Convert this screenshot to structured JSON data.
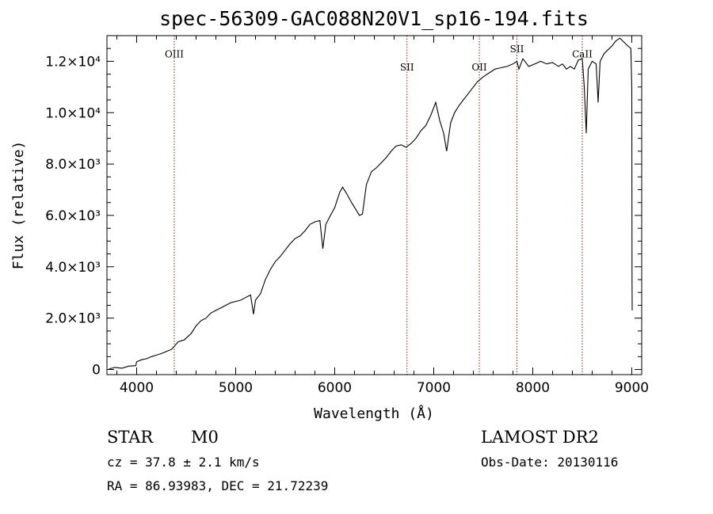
{
  "chart_data": {
    "type": "line",
    "title": "spec-56309-GAC088N20V1_sp16-194.fits",
    "xlabel": "Wavelength (Å)",
    "ylabel": "Flux (relative)",
    "xlim": [
      3700,
      9100
    ],
    "ylim": [
      -200,
      13000
    ],
    "x_ticks": [
      4000,
      5000,
      6000,
      7000,
      8000,
      9000
    ],
    "y_ticks": [
      {
        "value": 0,
        "label": "0"
      },
      {
        "value": 2000,
        "label": "2.0×10³"
      },
      {
        "value": 4000,
        "label": "4.0×10³"
      },
      {
        "value": 6000,
        "label": "6.0×10³"
      },
      {
        "value": 8000,
        "label": "8.0×10³"
      },
      {
        "value": 10000,
        "label": "1.0×10⁴"
      },
      {
        "value": 12000,
        "label": "1.2×10⁴"
      }
    ],
    "grid": false,
    "legend": "none",
    "series": [
      {
        "points": [
          [
            3720,
            20
          ],
          [
            3780,
            80
          ],
          [
            3850,
            50
          ],
          [
            3920,
            130
          ],
          [
            3990,
            150
          ],
          [
            4000,
            300
          ],
          [
            4050,
            380
          ],
          [
            4100,
            420
          ],
          [
            4150,
            500
          ],
          [
            4200,
            560
          ],
          [
            4250,
            620
          ],
          [
            4300,
            700
          ],
          [
            4350,
            780
          ],
          [
            4380,
            900
          ],
          [
            4420,
            1080
          ],
          [
            4480,
            1150
          ],
          [
            4550,
            1400
          ],
          [
            4600,
            1700
          ],
          [
            4650,
            1900
          ],
          [
            4700,
            2000
          ],
          [
            4750,
            2200
          ],
          [
            4800,
            2300
          ],
          [
            4850,
            2400
          ],
          [
            4900,
            2500
          ],
          [
            4950,
            2600
          ],
          [
            5000,
            2650
          ],
          [
            5050,
            2700
          ],
          [
            5100,
            2800
          ],
          [
            5150,
            2900
          ],
          [
            5180,
            2150
          ],
          [
            5200,
            2700
          ],
          [
            5250,
            2950
          ],
          [
            5300,
            3500
          ],
          [
            5350,
            3900
          ],
          [
            5400,
            4200
          ],
          [
            5450,
            4400
          ],
          [
            5500,
            4650
          ],
          [
            5550,
            4900
          ],
          [
            5600,
            5100
          ],
          [
            5650,
            5200
          ],
          [
            5700,
            5400
          ],
          [
            5750,
            5650
          ],
          [
            5800,
            5750
          ],
          [
            5850,
            5800
          ],
          [
            5880,
            4700
          ],
          [
            5910,
            5650
          ],
          [
            5950,
            5950
          ],
          [
            6000,
            6300
          ],
          [
            6050,
            6900
          ],
          [
            6080,
            7100
          ],
          [
            6120,
            6850
          ],
          [
            6170,
            6500
          ],
          [
            6210,
            6250
          ],
          [
            6250,
            6000
          ],
          [
            6280,
            6050
          ],
          [
            6320,
            7200
          ],
          [
            6370,
            7700
          ],
          [
            6420,
            7850
          ],
          [
            6470,
            8050
          ],
          [
            6520,
            8250
          ],
          [
            6570,
            8500
          ],
          [
            6620,
            8700
          ],
          [
            6670,
            8750
          ],
          [
            6720,
            8650
          ],
          [
            6770,
            8800
          ],
          [
            6820,
            9000
          ],
          [
            6870,
            9300
          ],
          [
            6920,
            9500
          ],
          [
            6970,
            9900
          ],
          [
            7000,
            10200
          ],
          [
            7020,
            10400
          ],
          [
            7060,
            9700
          ],
          [
            7100,
            9200
          ],
          [
            7130,
            8500
          ],
          [
            7170,
            9600
          ],
          [
            7210,
            10000
          ],
          [
            7260,
            10300
          ],
          [
            7320,
            10600
          ],
          [
            7380,
            10900
          ],
          [
            7440,
            11200
          ],
          [
            7500,
            11400
          ],
          [
            7560,
            11550
          ],
          [
            7620,
            11700
          ],
          [
            7680,
            11750
          ],
          [
            7740,
            11800
          ],
          [
            7800,
            11900
          ],
          [
            7840,
            12000
          ],
          [
            7860,
            11700
          ],
          [
            7900,
            12100
          ],
          [
            7960,
            11800
          ],
          [
            8020,
            11900
          ],
          [
            8080,
            12000
          ],
          [
            8140,
            11900
          ],
          [
            8200,
            11950
          ],
          [
            8260,
            11800
          ],
          [
            8300,
            11900
          ],
          [
            8340,
            11700
          ],
          [
            8380,
            11800
          ],
          [
            8420,
            11700
          ],
          [
            8460,
            12050
          ],
          [
            8500,
            12100
          ],
          [
            8520,
            11000
          ],
          [
            8540,
            9200
          ],
          [
            8560,
            11700
          ],
          [
            8600,
            12000
          ],
          [
            8640,
            11900
          ],
          [
            8660,
            10400
          ],
          [
            8680,
            12000
          ],
          [
            8720,
            12300
          ],
          [
            8760,
            12450
          ],
          [
            8800,
            12600
          ],
          [
            8840,
            12800
          ],
          [
            8880,
            12900
          ],
          [
            8920,
            12750
          ],
          [
            8960,
            12600
          ],
          [
            8990,
            12500
          ],
          [
            9000,
            11000
          ],
          [
            9002,
            3500
          ],
          [
            9004,
            2300
          ]
        ]
      }
    ],
    "emission_lines": [
      {
        "label": "OIII",
        "wavelength": 4380,
        "label_y": 12150
      },
      {
        "label": "SII",
        "wavelength": 6730,
        "label_y": 11650
      },
      {
        "label": "OII",
        "wavelength": 7460,
        "label_y": 11650
      },
      {
        "label": "SII",
        "wavelength": 7840,
        "label_y": 12350
      },
      {
        "label": "CaII",
        "wavelength": 8500,
        "label_y": 12150
      }
    ],
    "annotations": {
      "class": "STAR",
      "subclass": "M0",
      "cz": "cz = 37.8 ± 2.1 km/s",
      "coords": "RA =  86.93983, DEC =  21.72239",
      "survey": "LAMOST DR2",
      "obs_date": "Obs-Date: 20130116"
    },
    "colors": {
      "line": "#000000",
      "marker": "#8b1a1a"
    }
  }
}
